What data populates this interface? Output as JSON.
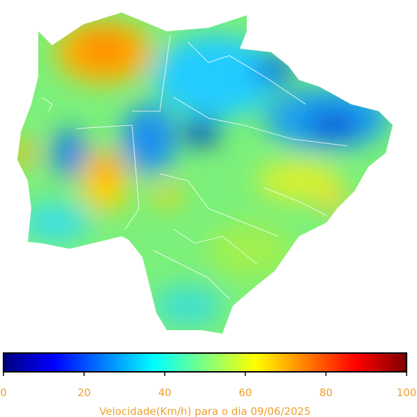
{
  "colorbar": {
    "label": "Velocidade(Km/h) para o dia 09/06/2025",
    "lim": [
      0,
      100
    ],
    "ticks": [
      0,
      20,
      40,
      60,
      80,
      100
    ],
    "colormap": "jet"
  }
}
